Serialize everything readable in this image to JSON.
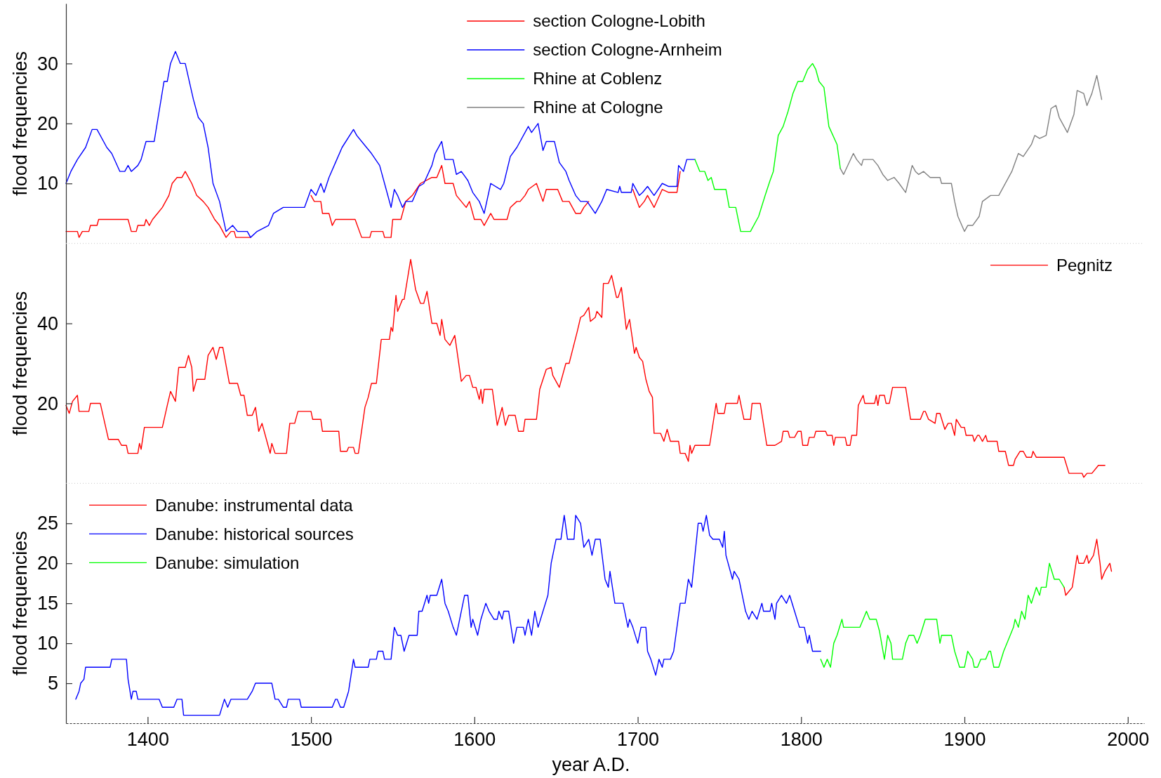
{
  "chart_data": [
    {
      "type": "line",
      "ylabel": "flood frequencies",
      "xlim": [
        1350,
        2010
      ],
      "ylim": [
        0,
        40
      ],
      "yticks": [
        10,
        20,
        30
      ],
      "tick_labels": "y",
      "legend": "top",
      "series": [
        {
          "name": "section Cologne-Lobith",
          "color": "#ff0000",
          "x": [
            1350,
            1357,
            1358,
            1360,
            1364,
            1365,
            1369,
            1370,
            1388,
            1390,
            1393,
            1394,
            1398,
            1399,
            1401,
            1403,
            1406,
            1409,
            1411,
            1413,
            1415,
            1418,
            1421,
            1423,
            1427,
            1430,
            1434,
            1437,
            1441,
            1444,
            1448,
            1451,
            1453,
            1454,
            1463,
            1467,
            1474,
            1477,
            1483,
            1496,
            1500,
            1502,
            1506,
            1507,
            1511,
            1513,
            1515,
            1527,
            1531,
            1536,
            1537,
            1544,
            1545,
            1549,
            1550,
            1555,
            1558,
            1562,
            1567,
            1574,
            1577,
            1580,
            1582,
            1587,
            1589,
            1592,
            1595,
            1597,
            1600,
            1604,
            1606,
            1610,
            1612,
            1620,
            1622,
            1626,
            1628,
            1631,
            1633,
            1638,
            1642,
            1644,
            1651,
            1654,
            1658,
            1662,
            1665,
            1667,
            1670,
            1674,
            1678,
            1681,
            1693,
            1697,
            1701,
            1704,
            1706,
            1710,
            1715,
            1719,
            1724,
            1726
          ],
          "values": [
            2,
            2,
            1,
            2,
            2,
            3,
            3,
            4,
            4,
            2,
            2,
            3,
            3,
            4,
            3,
            4,
            5,
            6,
            7,
            8,
            10,
            11,
            11,
            12,
            10,
            8,
            7,
            6,
            4,
            3,
            1,
            2,
            2,
            1,
            1,
            null,
            null,
            null,
            null,
            null,
            8,
            7,
            7,
            5,
            5,
            3,
            4,
            4,
            1,
            1,
            2,
            2,
            1,
            1,
            4,
            4,
            7,
            8,
            10,
            11,
            11,
            13,
            10,
            10,
            8,
            7,
            6,
            7,
            4,
            4,
            3,
            5,
            4,
            4,
            6,
            7,
            7,
            8,
            9,
            10,
            7,
            9,
            9,
            7,
            7,
            5,
            5,
            6,
            7,
            null,
            null,
            null,
            null,
            9,
            6,
            7,
            8,
            6,
            9,
            8.5,
            8.5,
            12
          ]
        },
        {
          "name": "section Cologne-Arnheim",
          "color": "#0000ff",
          "x": [
            1350,
            1353,
            1357,
            1362,
            1366,
            1369,
            1375,
            1378,
            1383,
            1386,
            1388,
            1390,
            1394,
            1396,
            1399,
            1404,
            1407,
            1410,
            1412,
            1414,
            1417,
            1420,
            1423,
            1428,
            1431,
            1434,
            1437,
            1440,
            1444,
            1448,
            1452,
            1455,
            1461,
            1463,
            1467,
            1474,
            1477,
            1483,
            1496,
            1500,
            1503,
            1506,
            1508,
            1511,
            1515,
            1519,
            1526,
            1528,
            1534,
            1537,
            1542,
            1546,
            1549,
            1551,
            1553,
            1556,
            1558,
            1562,
            1566,
            1569,
            1574,
            1576,
            1580,
            1582,
            1587,
            1589,
            1592,
            1596,
            1599,
            1603,
            1606,
            1610,
            1616,
            1618,
            1622,
            1626,
            1633,
            1635,
            1639,
            1642,
            1644,
            1649,
            1652,
            1656,
            1658,
            1662,
            1665,
            1669,
            1674,
            1678,
            1681,
            1688,
            1689,
            1690,
            1696,
            1697,
            1701,
            1703,
            1706,
            1710,
            1715,
            1719,
            1724,
            1725,
            1728,
            1730,
            1735
          ],
          "values": [
            10,
            12,
            14,
            16,
            19,
            19,
            16,
            15,
            12,
            12,
            13,
            12,
            13,
            14,
            17,
            17,
            22,
            27,
            27,
            30,
            32,
            30,
            30,
            24,
            21,
            20,
            16,
            10,
            7,
            2,
            3,
            2,
            2,
            1,
            2,
            3,
            5,
            6,
            6,
            9,
            8,
            10,
            8.5,
            11,
            13.5,
            16,
            19,
            18,
            16,
            15,
            13,
            9,
            6,
            9,
            8,
            6,
            7,
            7,
            9.5,
            10,
            13,
            15,
            17,
            14,
            14,
            11.5,
            12,
            10.5,
            8.5,
            7,
            5,
            10,
            9,
            10,
            14.5,
            16,
            19.5,
            18.5,
            20,
            15.5,
            17,
            17,
            13.5,
            12,
            10.5,
            8,
            7,
            7,
            5,
            7,
            9,
            8.5,
            9.5,
            8.5,
            8.5,
            10,
            8,
            8.5,
            9.5,
            8,
            10,
            9.5,
            9.5,
            13,
            12,
            14,
            14
          ]
        },
        {
          "name": "Rhine at Coblenz",
          "color": "#00ff00",
          "x": [
            1735,
            1738,
            1741,
            1743,
            1745,
            1747,
            1754,
            1756,
            1760,
            1763,
            1769,
            1774,
            1778,
            1781,
            1783,
            1786,
            1789,
            1792,
            1795,
            1798,
            1801,
            1804,
            1807,
            1809,
            1811,
            1814,
            1817,
            1822,
            1824
          ],
          "values": [
            14,
            12,
            12,
            10.5,
            11,
            9,
            9,
            6,
            6,
            2,
            2,
            4.5,
            8,
            10.5,
            12,
            18,
            19.5,
            22,
            25,
            27,
            27,
            29,
            30,
            29,
            27,
            26,
            19.5,
            16.5,
            12.5
          ]
        },
        {
          "name": "Rhine at Cologne",
          "color": "#808080",
          "x": [
            1824,
            1826,
            1832,
            1834,
            1837,
            1838,
            1844,
            1847,
            1850,
            1853,
            1857,
            1860,
            1864,
            1868,
            1870,
            1872,
            1875,
            1879,
            1885,
            1886,
            1892,
            1894,
            1896,
            1900,
            1902,
            1905,
            1909,
            1911,
            1916,
            1921,
            1929,
            1933,
            1936,
            1941,
            1943,
            1946,
            1950,
            1953,
            1956,
            1958,
            1963,
            1967,
            1969,
            1973,
            1975,
            1978,
            1981,
            1984
          ],
          "values": [
            12.5,
            11.5,
            15,
            14,
            13,
            14,
            14,
            13,
            11.5,
            10.5,
            11,
            10,
            8.5,
            13,
            12,
            11.5,
            12,
            11,
            11,
            10,
            10,
            7,
            4.5,
            2,
            3,
            3,
            4.5,
            7,
            8,
            8,
            12,
            15,
            14.5,
            16.5,
            18,
            17.5,
            18,
            22.5,
            23,
            21,
            18.5,
            21.5,
            25.5,
            25,
            23,
            25,
            28,
            24
          ]
        }
      ]
    },
    {
      "type": "line",
      "ylabel": "flood frequencies",
      "xlim": [
        1350,
        2010
      ],
      "ylim": [
        0,
        60
      ],
      "yticks": [
        20,
        40
      ],
      "tick_labels": "y",
      "legend": "top right",
      "series": [
        {
          "name": "Pegnitz",
          "color": "#ff0000",
          "x": [
            1350,
            1352,
            1354,
            1357,
            1358,
            1364,
            1365,
            1371,
            1376,
            1382,
            1384,
            1387,
            1388,
            1394,
            1395,
            1396,
            1398,
            1409,
            1412,
            1414,
            1417,
            1419,
            1423,
            1425,
            1427,
            1428,
            1430,
            1435,
            1437,
            1440,
            1442,
            1444,
            1446,
            1450,
            1455,
            1457,
            1459,
            1461,
            1464,
            1466,
            1468,
            1470,
            1473,
            1475,
            1476,
            1478,
            1485,
            1487,
            1490,
            1492,
            1500,
            1501,
            1506,
            1507,
            1517,
            1518,
            1522,
            1523,
            1526,
            1527,
            1529,
            1533,
            1535,
            1537,
            1540,
            1543,
            1548,
            1549,
            1550,
            1552,
            1553,
            1556,
            1557,
            1561,
            1564,
            1567,
            1569,
            1571,
            1574,
            1577,
            1579,
            1580,
            1582,
            1585,
            1588,
            1592,
            1595,
            1597,
            1599,
            1601,
            1603,
            1604,
            1605,
            1606,
            1611,
            1614,
            1617,
            1619,
            1621,
            1625,
            1627,
            1630,
            1631,
            1638,
            1640,
            1644,
            1647,
            1648,
            1652,
            1656,
            1658,
            1663,
            1665,
            1667,
            1670,
            1671,
            1674,
            1675,
            1678,
            1679,
            1682,
            1684,
            1687,
            1688,
            1690,
            1693,
            1695,
            1698,
            1699,
            1701,
            1703,
            1705,
            1707,
            1709,
            1710,
            1714,
            1716,
            1718,
            1720,
            1725,
            1726,
            1729,
            1731,
            1732,
            1733,
            1735,
            1744,
            1748,
            1749,
            1753,
            1754,
            1761,
            1762,
            1764,
            1765,
            1769,
            1770,
            1775,
            1779,
            1784,
            1788,
            1789,
            1792,
            1793,
            1796,
            1798,
            1800,
            1801,
            1804,
            1805,
            1808,
            1809,
            1815,
            1816,
            1819,
            1820,
            1821,
            1827,
            1828,
            1830,
            1831,
            1834,
            1835,
            1838,
            1839,
            1845,
            1846,
            1847,
            1848,
            1851,
            1852,
            1854,
            1856,
            1864,
            1867,
            1873,
            1875,
            1876,
            1878,
            1882,
            1883,
            1885,
            1888,
            1890,
            1892,
            1894,
            1895,
            1898,
            1900,
            1901,
            1905,
            1906,
            1908,
            1909,
            1911,
            1913,
            1914,
            1920,
            1921,
            1925,
            1927,
            1930,
            1931,
            1934,
            1936,
            1938,
            1941,
            1942,
            1944,
            1961,
            1964,
            1972,
            1973,
            1975,
            1978,
            1982,
            1986
          ],
          "values": [
            19.5,
            17.5,
            20.5,
            22,
            18,
            18,
            20,
            20,
            11,
            11,
            9.5,
            9.5,
            7.5,
            7.5,
            10,
            8.5,
            14,
            14,
            19.5,
            23,
            20.5,
            29,
            29,
            32,
            29,
            23,
            26,
            26,
            32,
            34,
            31,
            34,
            34,
            25,
            25,
            22,
            22,
            17,
            17,
            19,
            13,
            15,
            10.5,
            7.5,
            10,
            7.5,
            7.5,
            15,
            15,
            18,
            18,
            16,
            16,
            13,
            13,
            8,
            8,
            9,
            9,
            7.5,
            7.5,
            19,
            21.5,
            25,
            25,
            36,
            36,
            39,
            38,
            47,
            43,
            46,
            46,
            56,
            48.5,
            45,
            45,
            48,
            40,
            40,
            37,
            41,
            36,
            34.5,
            37,
            25.5,
            27,
            27,
            24,
            24,
            21,
            23.5,
            20,
            23.5,
            23.5,
            14.5,
            19,
            14.5,
            17,
            17,
            13,
            13,
            16,
            16,
            23.5,
            28.5,
            29,
            27,
            24,
            30,
            30,
            38,
            41.5,
            42,
            44,
            40.5,
            41.5,
            43,
            41.5,
            50,
            50,
            52,
            46.5,
            46.5,
            49,
            38.5,
            41,
            32.5,
            34,
            31.5,
            30.5,
            26,
            23,
            21.5,
            12.5,
            12.5,
            10.5,
            13.5,
            10.5,
            10.5,
            7.5,
            7.5,
            5.5,
            9.5,
            7.5,
            9.5,
            9.5,
            20,
            17.5,
            17.5,
            20,
            20,
            22,
            18,
            16,
            16,
            20,
            20,
            9.5,
            9.5,
            10.5,
            13,
            13,
            11.5,
            11.5,
            13,
            13,
            9.5,
            9.5,
            11.5,
            11.5,
            13,
            13,
            12,
            12,
            9.5,
            11.5,
            11.5,
            9.5,
            9.5,
            12,
            12,
            19.5,
            22,
            20,
            20,
            22,
            19.5,
            22,
            22,
            20,
            20,
            24,
            24,
            16,
            16,
            18,
            18,
            16,
            15,
            17.5,
            17.5,
            13.5,
            15,
            15,
            12,
            16,
            14,
            14,
            12,
            12,
            10.5,
            12,
            12,
            10.5,
            12,
            10.5,
            10.5,
            8,
            8,
            4.5,
            4.5,
            6,
            8,
            8,
            6.5,
            6.5,
            8,
            6.5,
            6.5,
            2.5,
            2.5,
            1.5,
            2.5,
            2.5,
            4.5,
            4.5
          ]
        }
      ]
    },
    {
      "type": "line",
      "xlabel": "year A.D.",
      "ylabel": "flood frequencies",
      "xlim": [
        1350,
        2010
      ],
      "ylim": [
        0,
        30
      ],
      "xticks": [
        1400,
        1500,
        1600,
        1700,
        1800,
        1900,
        2000
      ],
      "yticks": [
        5,
        10,
        15,
        20,
        25
      ],
      "legend": "top left",
      "series": [
        {
          "name": "Danube: instrumental data",
          "color": "#ff0000",
          "x": [
            1961,
            1962,
            1966,
            1969,
            1970,
            1973,
            1975,
            1976,
            1979,
            1981,
            1983,
            1984,
            1986,
            1989,
            1990
          ],
          "values": [
            17,
            16,
            17,
            21,
            20,
            20,
            21,
            20,
            21,
            23,
            20,
            18,
            19,
            20,
            19
          ]
        },
        {
          "name": "Danube: historical sources",
          "color": "#0000ff",
          "x": [
            1356,
            1358,
            1359,
            1361,
            1362,
            1377,
            1378,
            1387,
            1388,
            1390,
            1391,
            1393,
            1394,
            1407,
            1409,
            1416,
            1418,
            1421,
            1422,
            1444,
            1447,
            1449,
            1451,
            1461,
            1464,
            1466,
            1476,
            1478,
            1480,
            1483,
            1485,
            1486,
            1493,
            1494,
            1513,
            1515,
            1516,
            1518,
            1520,
            1523,
            1526,
            1527,
            1535,
            1536,
            1540,
            1541,
            1544,
            1545,
            1549,
            1551,
            1553,
            1555,
            1557,
            1560,
            1565,
            1566,
            1568,
            1571,
            1572,
            1573,
            1577,
            1580,
            1582,
            1584,
            1587,
            1589,
            1591,
            1594,
            1596,
            1598,
            1599,
            1602,
            1604,
            1607,
            1609,
            1612,
            1614,
            1615,
            1617,
            1618,
            1621,
            1624,
            1626,
            1630,
            1631,
            1633,
            1635,
            1637,
            1639,
            1642,
            1645,
            1647,
            1650,
            1653,
            1655,
            1657,
            1661,
            1662,
            1665,
            1667,
            1670,
            1672,
            1674,
            1677,
            1680,
            1682,
            1683,
            1686,
            1691,
            1694,
            1695,
            1697,
            1700,
            1702,
            1705,
            1706,
            1708,
            1711,
            1713,
            1715,
            1716,
            1720,
            1722,
            1724,
            1726,
            1729,
            1731,
            1733,
            1737,
            1739,
            1740,
            1742,
            1744,
            1746,
            1750,
            1752,
            1753,
            1754,
            1758,
            1759,
            1762,
            1764,
            1766,
            1768,
            1770,
            1773,
            1776,
            1777,
            1781,
            1782,
            1784,
            1785,
            1788,
            1791,
            1793,
            1796,
            1799,
            1802,
            1804,
            1805,
            1807,
            1812
          ],
          "values": [
            3,
            4,
            5,
            5.5,
            7,
            7,
            8,
            8,
            5.5,
            3,
            4,
            4,
            3,
            3,
            2,
            2,
            3,
            3,
            1,
            1,
            3,
            2,
            3,
            3,
            4,
            5,
            5,
            3,
            3,
            2,
            2,
            3,
            3,
            2,
            2,
            3,
            3,
            2,
            2,
            4,
            8,
            7,
            7,
            8,
            8,
            9,
            9,
            8,
            8,
            12,
            11,
            11,
            9,
            11,
            11,
            14,
            14,
            16,
            15,
            16,
            16,
            18,
            15,
            14,
            12,
            11,
            13,
            16,
            16,
            12,
            13,
            11,
            13,
            15,
            14,
            13,
            13,
            14,
            13,
            14,
            14,
            10,
            12,
            12,
            11,
            13,
            11,
            14,
            12,
            14,
            16,
            20,
            23,
            23,
            26,
            23,
            23,
            26,
            25,
            22,
            23,
            21,
            23,
            23,
            18,
            17,
            19,
            15,
            15,
            12,
            13,
            12,
            10,
            12,
            12,
            9,
            8,
            6,
            8,
            7,
            8,
            8,
            9,
            12,
            15,
            15,
            18,
            17,
            25,
            25,
            24,
            26,
            23.5,
            23,
            23,
            22,
            24,
            21,
            18,
            19,
            18,
            16,
            14,
            13,
            14,
            13,
            15,
            14,
            14,
            15,
            13,
            15,
            16,
            15,
            16,
            14,
            12,
            12,
            10,
            11,
            9,
            9
          ]
        },
        {
          "name": "Danube: simulation",
          "color": "#00ff00",
          "x": [
            1812,
            1814,
            1816,
            1818,
            1820,
            1822,
            1825,
            1826,
            1836,
            1838,
            1840,
            1842,
            1846,
            1848,
            1851,
            1853,
            1855,
            1856,
            1862,
            1864,
            1866,
            1869,
            1871,
            1873,
            1876,
            1883,
            1885,
            1886,
            1892,
            1894,
            1897,
            1900,
            1902,
            1905,
            1906,
            1908,
            1910,
            1913,
            1915,
            1916,
            1918,
            1921,
            1924,
            1928,
            1930,
            1931,
            1933,
            1935,
            1937,
            1939,
            1941,
            1944,
            1946,
            1947,
            1950,
            1952,
            1955,
            1958,
            1961
          ],
          "values": [
            8,
            7,
            8,
            7,
            10,
            11,
            13,
            12,
            12,
            13,
            14,
            13,
            13,
            11.5,
            8,
            11,
            10,
            8,
            8,
            10,
            11,
            11,
            10,
            11,
            13,
            13,
            10,
            11,
            11,
            9,
            7,
            7,
            9,
            8,
            7,
            7,
            8,
            8,
            9,
            9,
            7,
            7,
            9,
            11,
            12,
            13,
            12,
            14,
            13,
            16,
            15,
            17,
            16,
            17,
            17,
            20,
            18,
            18,
            17
          ]
        }
      ]
    }
  ]
}
